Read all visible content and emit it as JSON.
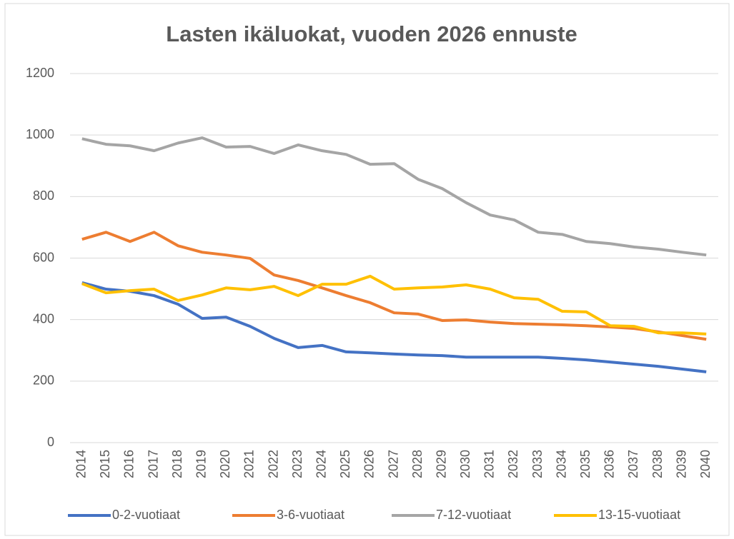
{
  "chart_data": {
    "type": "line",
    "title": "Lasten ikäluokat, vuoden 2026 ennuste",
    "categories": [
      "2014",
      "2015",
      "2016",
      "2017",
      "2018",
      "2019",
      "2020",
      "2021",
      "2022",
      "2023",
      "2024",
      "2025",
      "2026",
      "2027",
      "2028",
      "2029",
      "2030",
      "2031",
      "2032",
      "2033",
      "2034",
      "2035",
      "2036",
      "2037",
      "2038",
      "2039",
      "2040"
    ],
    "series": [
      {
        "name": "0-2-vuotiaat",
        "color": "#4472c4",
        "values": [
          520,
          499,
          492,
          478,
          450,
          404,
          408,
          378,
          339,
          309,
          316,
          295,
          292,
          288,
          285,
          283,
          278,
          278,
          278,
          278,
          274,
          269,
          262,
          255,
          248,
          239,
          230
        ]
      },
      {
        "name": "3-6-vuotiaat",
        "color": "#ed7d31",
        "values": [
          661,
          684,
          654,
          684,
          640,
          619,
          610,
          599,
          545,
          527,
          503,
          478,
          455,
          422,
          418,
          397,
          399,
          392,
          387,
          385,
          383,
          380,
          376,
          371,
          360,
          348,
          336
        ]
      },
      {
        "name": "7-12-vuotiaat",
        "color": "#a5a5a5",
        "values": [
          988,
          970,
          965,
          949,
          974,
          991,
          961,
          963,
          940,
          968,
          949,
          937,
          905,
          907,
          856,
          826,
          780,
          740,
          724,
          684,
          677,
          654,
          647,
          636,
          629,
          619,
          610
        ]
      },
      {
        "name": "13-15-vuotiaat",
        "color": "#ffc000",
        "values": [
          517,
          487,
          494,
          499,
          462,
          480,
          503,
          497,
          508,
          478,
          515,
          515,
          541,
          499,
          503,
          506,
          513,
          499,
          471,
          466,
          427,
          425,
          380,
          378,
          357,
          357,
          353
        ]
      }
    ],
    "ylim": [
      0,
      1200
    ],
    "yticks": [
      0,
      200,
      400,
      600,
      800,
      1000,
      1200
    ],
    "grid": true,
    "legend": "bottom"
  }
}
